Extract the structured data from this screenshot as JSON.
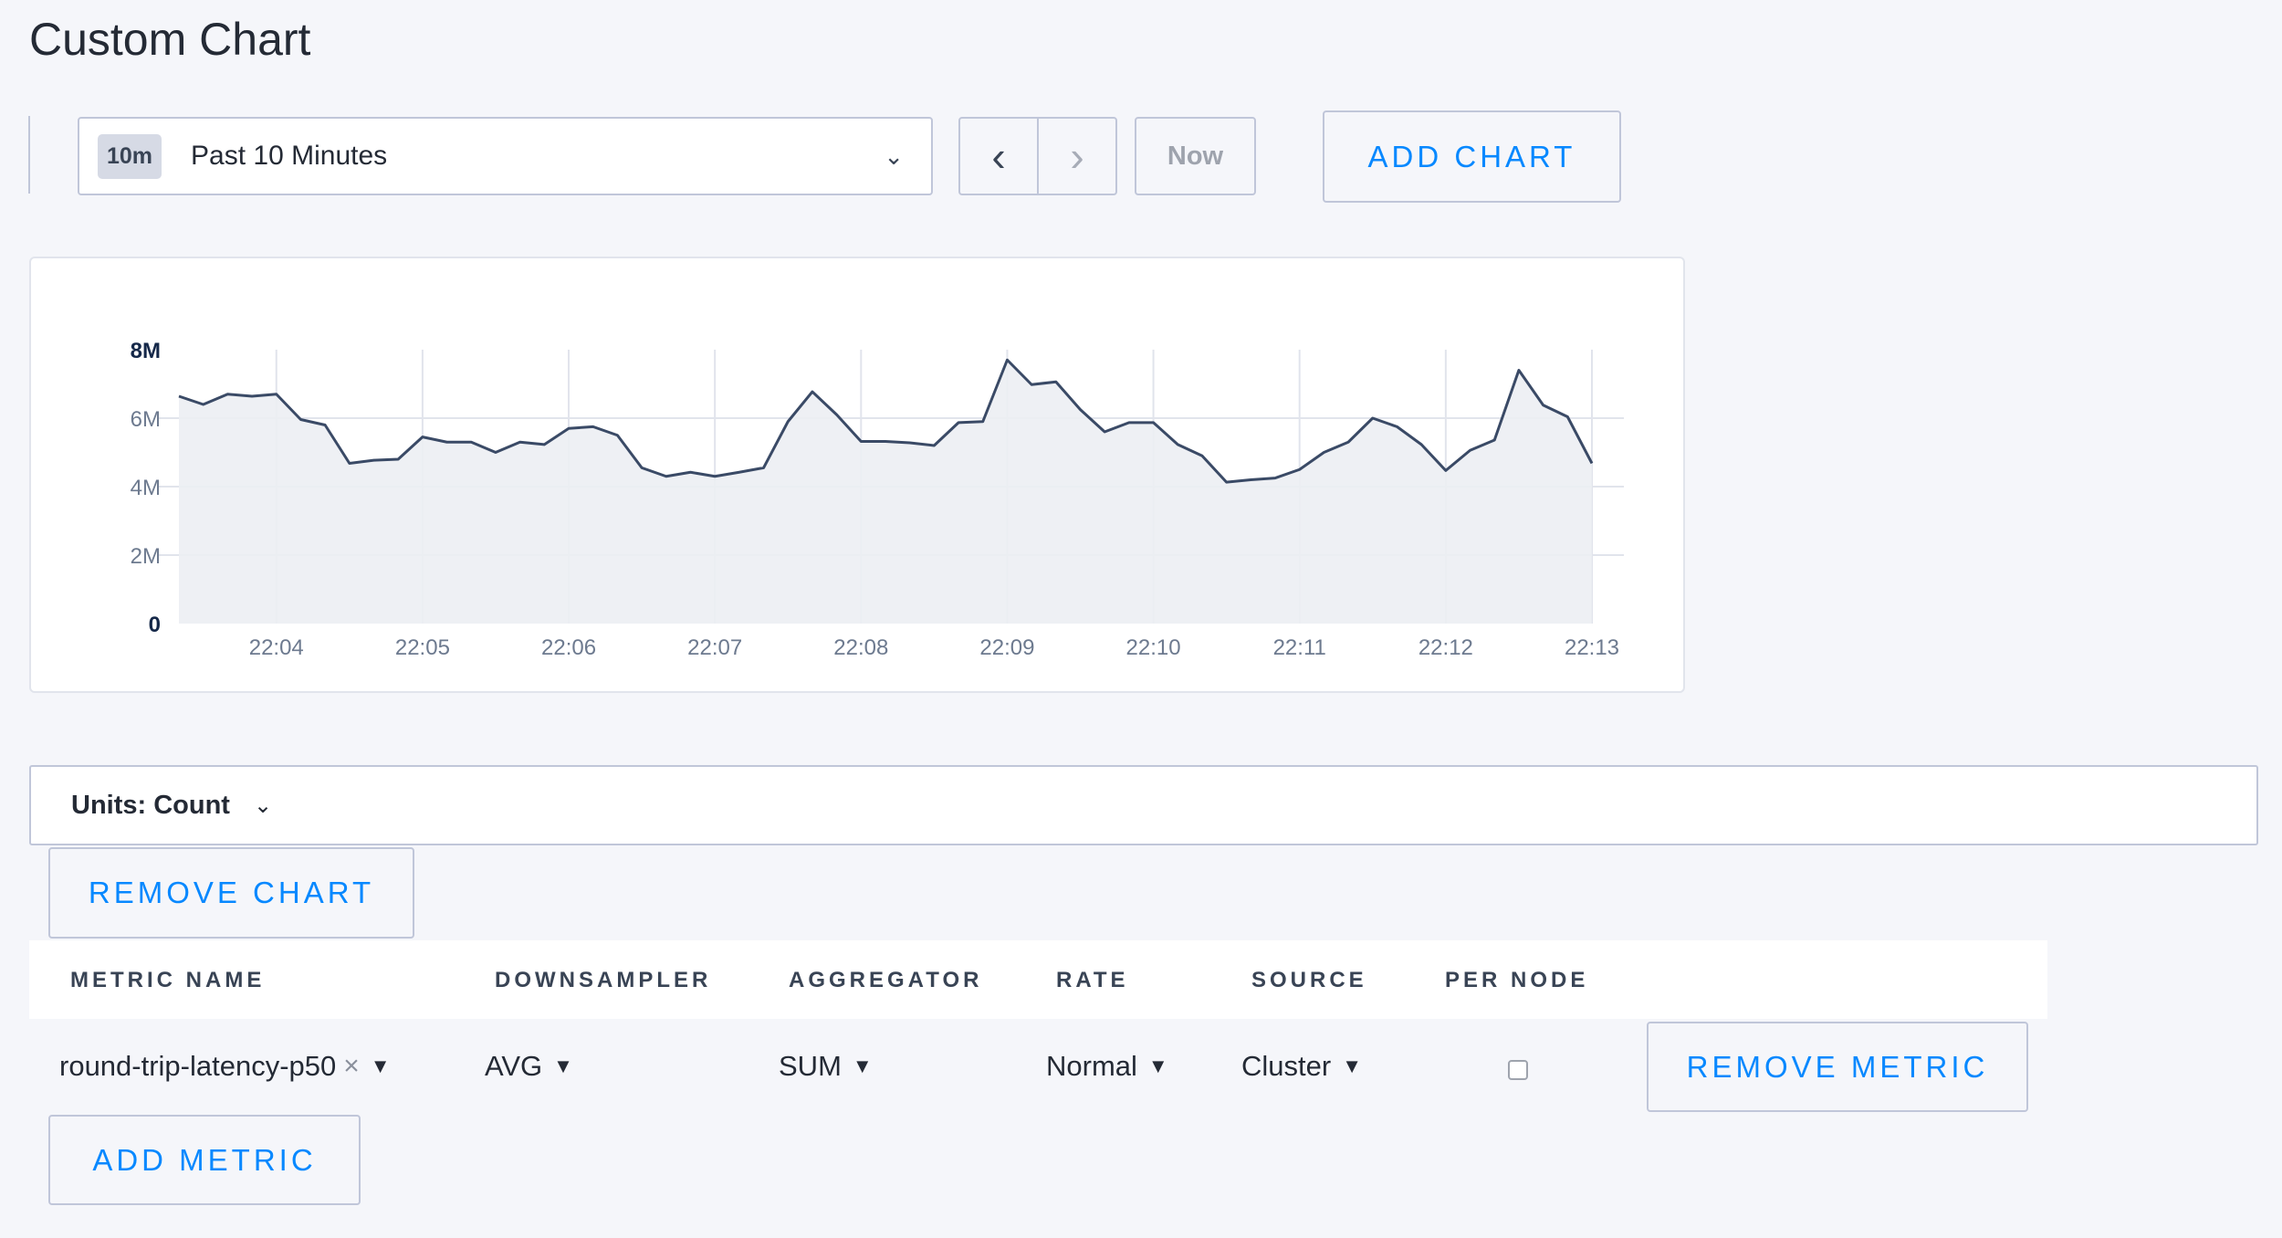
{
  "page": {
    "title": "Custom Chart"
  },
  "time_selector": {
    "badge": "10m",
    "label": "Past 10 Minutes",
    "icon": "chevron-down-icon"
  },
  "nav": {
    "prev_icon": "chevron-left-icon",
    "next_icon": "chevron-right-icon",
    "prev": "‹",
    "next": "›",
    "now_label": "Now"
  },
  "add_chart_label": "ADD CHART",
  "chart_data": {
    "type": "area",
    "title": "",
    "xlabel": "",
    "ylabel": "",
    "ylim": [
      0,
      8000000
    ],
    "y_ticks": [
      "0",
      "2M",
      "4M",
      "6M",
      "8M"
    ],
    "y_tick_values": [
      0,
      2000000,
      4000000,
      6000000,
      8000000
    ],
    "x_ticks": [
      "22:04",
      "22:05",
      "22:06",
      "22:07",
      "22:08",
      "22:09",
      "22:10",
      "22:11",
      "22:12",
      "22:13"
    ],
    "grid": true,
    "line_color": "#3a4a66",
    "fill_color": "#eceef3",
    "x_start": "22:03:20",
    "x_step_seconds": 10,
    "values": [
      6.64,
      6.4,
      6.7,
      6.64,
      6.7,
      5.96,
      5.8,
      4.68,
      4.77,
      4.8,
      5.45,
      5.3,
      5.3,
      5.0,
      5.3,
      5.23,
      5.7,
      5.75,
      5.5,
      4.55,
      4.3,
      4.42,
      4.3,
      4.42,
      4.55,
      5.9,
      6.77,
      6.1,
      5.32,
      5.32,
      5.28,
      5.2,
      5.87,
      5.9,
      7.7,
      6.98,
      7.06,
      6.25,
      5.6,
      5.87,
      5.87,
      5.23,
      4.9,
      4.13,
      4.2,
      4.25,
      4.5,
      5.0,
      5.3,
      6.0,
      5.75,
      5.23,
      4.47,
      5.06,
      5.36,
      7.4,
      6.38,
      6.04,
      4.68
    ],
    "values_unit": "M"
  },
  "units": {
    "label": "Units: Count",
    "icon": "chevron-down-icon"
  },
  "remove_chart_label": "REMOVE CHART",
  "table": {
    "headers": [
      "METRIC NAME",
      "DOWNSAMPLER",
      "AGGREGATOR",
      "RATE",
      "SOURCE",
      "PER NODE"
    ],
    "rows": [
      {
        "metric": "round-trip-latency-p50",
        "downsampler": "AVG",
        "aggregator": "SUM",
        "rate": "Normal",
        "source": "Cluster",
        "per_node": false,
        "remove_label": "REMOVE METRIC"
      }
    ]
  },
  "add_metric_label": "ADD METRIC",
  "colors": {
    "accent": "#0788ff",
    "border": "#c0c6d9",
    "background": "#f5f6fa"
  }
}
